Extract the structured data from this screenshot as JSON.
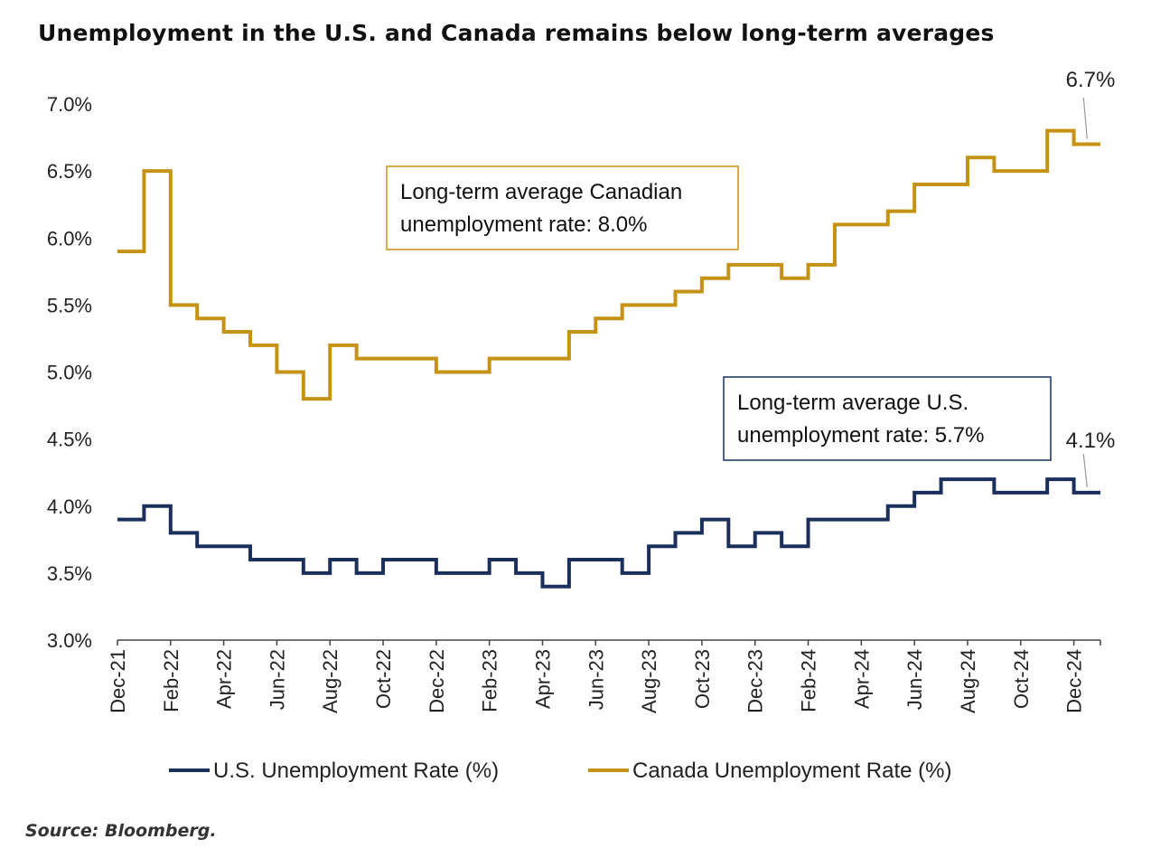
{
  "title": "Unemployment in the U.S. and Canada remains below long-term averages",
  "source": "Source: Bloomberg.",
  "colors": {
    "us": "#1a2f5a",
    "canada": "#c69214",
    "axis": "#444444"
  },
  "chart_data": {
    "type": "line",
    "step": true,
    "title": "Unemployment in the U.S. and Canada remains below long-term averages",
    "ylim": [
      3.0,
      7.0
    ],
    "yticks": [
      "3.0%",
      "3.5%",
      "4.0%",
      "4.5%",
      "5.0%",
      "5.5%",
      "6.0%",
      "6.5%",
      "7.0%"
    ],
    "ytick_values": [
      3.0,
      3.5,
      4.0,
      4.5,
      5.0,
      5.5,
      6.0,
      6.5,
      7.0
    ],
    "x": [
      "Dec-21",
      "Jan-22",
      "Feb-22",
      "Mar-22",
      "Apr-22",
      "May-22",
      "Jun-22",
      "Jul-22",
      "Aug-22",
      "Sep-22",
      "Oct-22",
      "Nov-22",
      "Dec-22",
      "Jan-23",
      "Feb-23",
      "Mar-23",
      "Apr-23",
      "May-23",
      "Jun-23",
      "Jul-23",
      "Aug-23",
      "Sep-23",
      "Oct-23",
      "Nov-23",
      "Dec-23",
      "Jan-24",
      "Feb-24",
      "Mar-24",
      "Apr-24",
      "May-24",
      "Jun-24",
      "Jul-24",
      "Aug-24",
      "Sep-24",
      "Oct-24",
      "Nov-24",
      "Dec-24"
    ],
    "xtick_labels": [
      "Dec-21",
      "Feb-22",
      "Apr-22",
      "Jun-22",
      "Aug-22",
      "Oct-22",
      "Dec-22",
      "Feb-23",
      "Apr-23",
      "Jun-23",
      "Aug-23",
      "Oct-23",
      "Dec-23",
      "Feb-24",
      "Apr-24",
      "Jun-24",
      "Aug-24",
      "Oct-24",
      "Dec-24"
    ],
    "series": [
      {
        "name": "U.S. Unemployment Rate (%)",
        "values": [
          3.9,
          4.0,
          3.8,
          3.7,
          3.7,
          3.6,
          3.6,
          3.5,
          3.6,
          3.5,
          3.6,
          3.6,
          3.5,
          3.5,
          3.6,
          3.5,
          3.4,
          3.6,
          3.6,
          3.5,
          3.7,
          3.8,
          3.9,
          3.7,
          3.8,
          3.7,
          3.9,
          3.9,
          3.9,
          4.0,
          4.1,
          4.2,
          4.2,
          4.1,
          4.1,
          4.2,
          4.1
        ]
      },
      {
        "name": "Canada Unemployment Rate (%)",
        "values": [
          5.9,
          6.5,
          5.5,
          5.4,
          5.3,
          5.2,
          5.0,
          4.8,
          5.2,
          5.1,
          5.1,
          5.1,
          5.0,
          5.0,
          5.1,
          5.1,
          5.1,
          5.3,
          5.4,
          5.5,
          5.5,
          5.6,
          5.7,
          5.8,
          5.8,
          5.7,
          5.8,
          6.1,
          6.1,
          6.2,
          6.4,
          6.4,
          6.6,
          6.5,
          6.5,
          6.8,
          6.7
        ]
      }
    ],
    "end_labels": {
      "canada": "6.7%",
      "us": "4.1%"
    },
    "annotations": [
      {
        "lines": [
          "Long-term average Canadian",
          "unemployment rate: 8.0%"
        ]
      },
      {
        "lines": [
          "Long-term average U.S.",
          "unemployment rate: 5.7%"
        ]
      }
    ],
    "legend": {
      "position": "bottom"
    }
  }
}
